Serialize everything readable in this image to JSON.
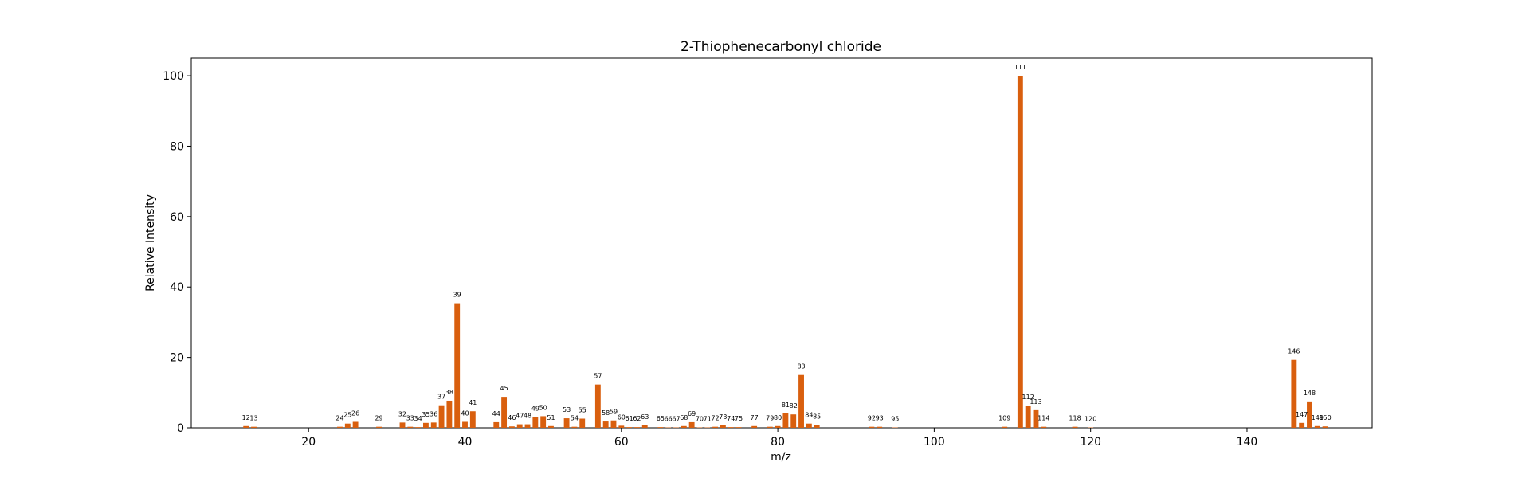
{
  "chart_data": {
    "type": "bar",
    "title": "2-Thiophenecarbonyl chloride",
    "xlabel": "m/z",
    "ylabel": "Relative Intensity",
    "xlim": [
      5,
      156
    ],
    "ylim": [
      0,
      105
    ],
    "xticks": [
      20,
      40,
      60,
      80,
      100,
      120,
      140
    ],
    "yticks": [
      0,
      20,
      40,
      60,
      80,
      100
    ],
    "bar_color": "#d95f0e",
    "peaks": [
      {
        "mz": 12,
        "intensity": 0.5
      },
      {
        "mz": 13,
        "intensity": 0.3
      },
      {
        "mz": 24,
        "intensity": 0.3
      },
      {
        "mz": 25,
        "intensity": 1.2
      },
      {
        "mz": 26,
        "intensity": 1.7
      },
      {
        "mz": 29,
        "intensity": 0.3
      },
      {
        "mz": 32,
        "intensity": 1.5
      },
      {
        "mz": 33,
        "intensity": 0.3
      },
      {
        "mz": 34,
        "intensity": 0.2
      },
      {
        "mz": 35,
        "intensity": 1.4
      },
      {
        "mz": 36,
        "intensity": 1.5
      },
      {
        "mz": 37,
        "intensity": 6.4
      },
      {
        "mz": 38,
        "intensity": 7.7
      },
      {
        "mz": 39,
        "intensity": 35.4
      },
      {
        "mz": 40,
        "intensity": 1.7
      },
      {
        "mz": 41,
        "intensity": 4.7
      },
      {
        "mz": 44,
        "intensity": 1.6
      },
      {
        "mz": 45,
        "intensity": 8.8
      },
      {
        "mz": 46,
        "intensity": 0.4
      },
      {
        "mz": 47,
        "intensity": 1.0
      },
      {
        "mz": 48,
        "intensity": 1.0
      },
      {
        "mz": 49,
        "intensity": 3.1
      },
      {
        "mz": 50,
        "intensity": 3.3
      },
      {
        "mz": 51,
        "intensity": 0.5
      },
      {
        "mz": 53,
        "intensity": 2.7
      },
      {
        "mz": 54,
        "intensity": 0.3
      },
      {
        "mz": 55,
        "intensity": 2.6
      },
      {
        "mz": 57,
        "intensity": 12.3
      },
      {
        "mz": 58,
        "intensity": 1.8
      },
      {
        "mz": 59,
        "intensity": 2.1
      },
      {
        "mz": 60,
        "intensity": 0.6
      },
      {
        "mz": 61,
        "intensity": 0.2
      },
      {
        "mz": 62,
        "intensity": 0.2
      },
      {
        "mz": 63,
        "intensity": 0.7
      },
      {
        "mz": 65,
        "intensity": 0.2
      },
      {
        "mz": 66,
        "intensity": 0.1
      },
      {
        "mz": 67,
        "intensity": 0.1
      },
      {
        "mz": 68,
        "intensity": 0.5
      },
      {
        "mz": 69,
        "intensity": 1.6
      },
      {
        "mz": 70,
        "intensity": 0.1
      },
      {
        "mz": 71,
        "intensity": 0.1
      },
      {
        "mz": 72,
        "intensity": 0.3
      },
      {
        "mz": 73,
        "intensity": 0.7
      },
      {
        "mz": 74,
        "intensity": 0.2
      },
      {
        "mz": 75,
        "intensity": 0.2
      },
      {
        "mz": 77,
        "intensity": 0.5
      },
      {
        "mz": 79,
        "intensity": 0.3
      },
      {
        "mz": 80,
        "intensity": 0.5
      },
      {
        "mz": 81,
        "intensity": 4.1
      },
      {
        "mz": 82,
        "intensity": 3.8
      },
      {
        "mz": 83,
        "intensity": 15.0
      },
      {
        "mz": 84,
        "intensity": 1.2
      },
      {
        "mz": 85,
        "intensity": 0.8
      },
      {
        "mz": 92,
        "intensity": 0.3
      },
      {
        "mz": 93,
        "intensity": 0.3
      },
      {
        "mz": 95,
        "intensity": 0.1
      },
      {
        "mz": 109,
        "intensity": 0.3
      },
      {
        "mz": 111,
        "intensity": 100.0
      },
      {
        "mz": 112,
        "intensity": 6.3
      },
      {
        "mz": 113,
        "intensity": 5.0
      },
      {
        "mz": 114,
        "intensity": 0.3
      },
      {
        "mz": 118,
        "intensity": 0.3
      },
      {
        "mz": 120,
        "intensity": 0.1
      },
      {
        "mz": 146,
        "intensity": 19.3
      },
      {
        "mz": 147,
        "intensity": 1.4
      },
      {
        "mz": 148,
        "intensity": 7.5
      },
      {
        "mz": 149,
        "intensity": 0.5
      },
      {
        "mz": 150,
        "intensity": 0.4
      }
    ]
  }
}
